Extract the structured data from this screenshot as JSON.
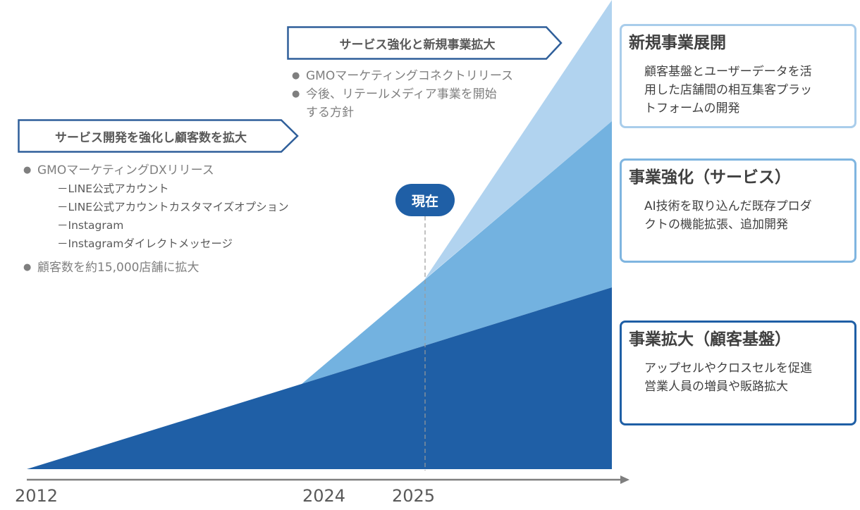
{
  "banners": {
    "left": "サービス開発を強化し顧客数を拡大",
    "top": "サービス強化と新規事業拡大"
  },
  "left_bullets": {
    "item1": "GMOマーケティングDXリリース",
    "subs": [
      "－LINE公式アカウント",
      "－LINE公式アカウントカスタマイズオプション",
      "－Instagram",
      "－Instagramダイレクトメッセージ"
    ],
    "item2": "顧客数を約15,000店舗に拡大"
  },
  "top_bullets": {
    "item1": "GMOマーケティングコネクトリリース",
    "item2_line1": "今後、リテールメディア事業を開始",
    "item2_line2": "する方針"
  },
  "current_label": "現在",
  "boxes": {
    "new_business": {
      "title": "新規事業展開",
      "desc": "顧客基盤とユーザーデータを活\n用した店舗間の相互集客プラッ\nトフォームの開発",
      "border_color": "#a9cdeb"
    },
    "service_enhancement": {
      "title": "事業強化（サービス）",
      "desc": "AI技術を取り込んだ既存プロダ\nクトの機能拡張、追加開発",
      "border_color": "#7fb5e0"
    },
    "customer_base": {
      "title": "事業拡大（顧客基盤）",
      "desc": "アップセルやクロスセルを促進\n営業人員の増員や販路拡大",
      "border_color": "#1f5fa6"
    }
  },
  "years": [
    "2012",
    "2024",
    "2025"
  ],
  "colors": {
    "dark_blue": "#1f5fa6",
    "mid_blue": "#73b2e0",
    "light_blue": "#b1d3ef",
    "banner_border": "#2f5f9a"
  }
}
